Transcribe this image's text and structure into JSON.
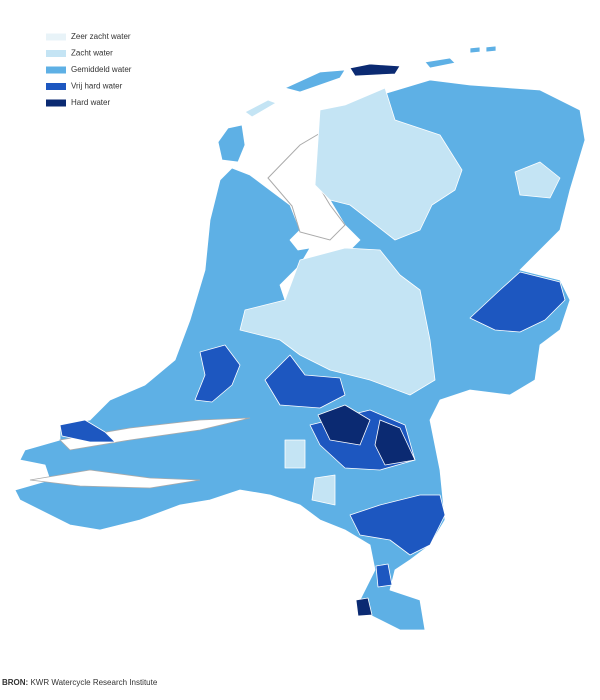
{
  "legend": {
    "items": [
      {
        "label": "Zeer zacht water",
        "color": "#e8f3f8"
      },
      {
        "label": "Zacht water",
        "color": "#c4e4f4"
      },
      {
        "label": "Gemiddeld water",
        "color": "#5eb0e5"
      },
      {
        "label": "Vrij hard water",
        "color": "#1d57c0"
      },
      {
        "label": "Hard water",
        "color": "#0b2a72"
      }
    ]
  },
  "source": {
    "label": "BRON:",
    "text": "KWR Watercycle Research Institute"
  }
}
